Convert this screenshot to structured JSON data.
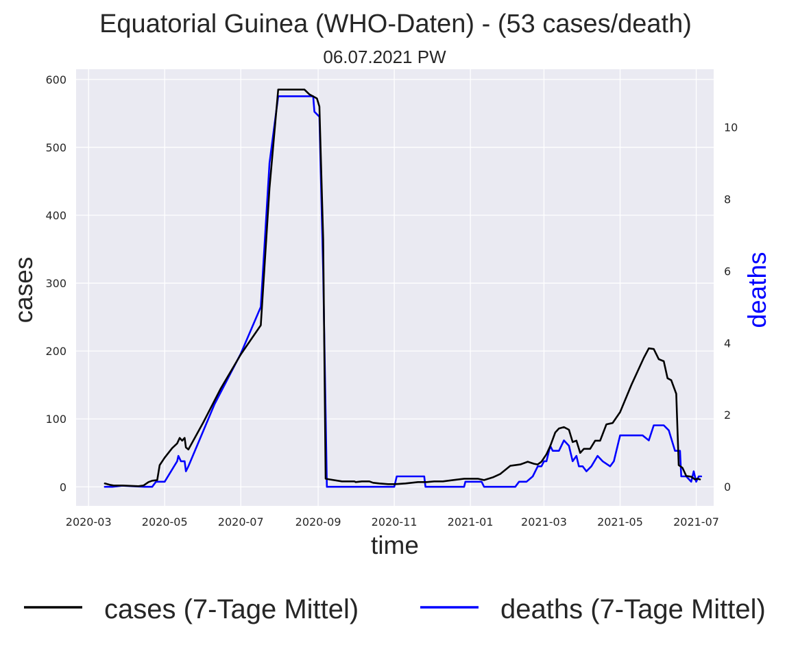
{
  "chart_data": {
    "type": "line",
    "title": "Equatorial Guinea (WHO-Daten) - (53 cases/death)",
    "subtitle": "06.07.2021 PW",
    "xlabel": "time",
    "ylabel": "cases",
    "y2label": "deaths",
    "x_ticks": [
      "2020-03",
      "2020-05",
      "2020-07",
      "2020-09",
      "2020-11",
      "2021-01",
      "2021-03",
      "2021-05",
      "2021-07"
    ],
    "y_ticks": [
      "0",
      "100",
      "200",
      "300",
      "400",
      "500",
      "600"
    ],
    "y2_ticks": [
      "0",
      "2",
      "4",
      "6",
      "8",
      "10"
    ],
    "xlim": [
      "2020-02-20",
      "2021-07-15"
    ],
    "ylim": [
      -28,
      615
    ],
    "y2lim": [
      -0.53,
      11.61
    ],
    "grid": true,
    "legend_position": "bottom-center",
    "colors": {
      "cases": "#000000",
      "deaths": "#0000ff",
      "plot_bg": "#eaeaf2",
      "grid": "#ffffff"
    },
    "series": [
      {
        "name": "cases (7-Tage Mittel)",
        "axis": "left",
        "points": [
          [
            "2020-03-14",
            5
          ],
          [
            "2020-03-18",
            3
          ],
          [
            "2020-03-21",
            2
          ],
          [
            "2020-03-28",
            2
          ],
          [
            "2020-04-10",
            1
          ],
          [
            "2020-04-14",
            2
          ],
          [
            "2020-04-18",
            7
          ],
          [
            "2020-04-21",
            9
          ],
          [
            "2020-04-25",
            10
          ],
          [
            "2020-04-27",
            32
          ],
          [
            "2020-05-01",
            43
          ],
          [
            "2020-05-07",
            57
          ],
          [
            "2020-05-11",
            64
          ],
          [
            "2020-05-13",
            72
          ],
          [
            "2020-05-15",
            68
          ],
          [
            "2020-05-17",
            72
          ],
          [
            "2020-05-18",
            58
          ],
          [
            "2020-05-20",
            55
          ],
          [
            "2020-06-01",
            95
          ],
          [
            "2020-06-15",
            145
          ],
          [
            "2020-07-01",
            195
          ],
          [
            "2020-07-17",
            238
          ],
          [
            "2020-07-24",
            440
          ],
          [
            "2020-07-31",
            585
          ],
          [
            "2020-08-21",
            585
          ],
          [
            "2020-08-25",
            578
          ],
          [
            "2020-08-31",
            572
          ],
          [
            "2020-09-02",
            560
          ],
          [
            "2020-09-05",
            365
          ],
          [
            "2020-09-07",
            12
          ],
          [
            "2020-09-10",
            11
          ],
          [
            "2020-09-20",
            8
          ],
          [
            "2020-09-30",
            8
          ],
          [
            "2020-10-01",
            7
          ],
          [
            "2020-10-06",
            8
          ],
          [
            "2020-10-12",
            8
          ],
          [
            "2020-10-15",
            6
          ],
          [
            "2020-10-20",
            5
          ],
          [
            "2020-10-27",
            4
          ],
          [
            "2020-11-02",
            4
          ],
          [
            "2020-11-10",
            5
          ],
          [
            "2020-11-20",
            7
          ],
          [
            "2020-11-27",
            7
          ],
          [
            "2020-12-03",
            8
          ],
          [
            "2020-12-10",
            8
          ],
          [
            "2020-12-18",
            10
          ],
          [
            "2020-12-27",
            12
          ],
          [
            "2021-01-01",
            12
          ],
          [
            "2021-01-07",
            12
          ],
          [
            "2021-01-12",
            10
          ],
          [
            "2021-01-19",
            14
          ],
          [
            "2021-01-25",
            19
          ],
          [
            "2021-02-02",
            31
          ],
          [
            "2021-02-10",
            33
          ],
          [
            "2021-02-16",
            37
          ],
          [
            "2021-02-21",
            34
          ],
          [
            "2021-02-24",
            33
          ],
          [
            "2021-02-27",
            37
          ],
          [
            "2021-03-03",
            48
          ],
          [
            "2021-03-06",
            60
          ],
          [
            "2021-03-10",
            80
          ],
          [
            "2021-03-13",
            86
          ],
          [
            "2021-03-17",
            88
          ],
          [
            "2021-03-21",
            84
          ],
          [
            "2021-03-24",
            66
          ],
          [
            "2021-03-27",
            68
          ],
          [
            "2021-03-30",
            50
          ],
          [
            "2021-04-02",
            56
          ],
          [
            "2021-04-07",
            56
          ],
          [
            "2021-04-11",
            68
          ],
          [
            "2021-04-15",
            68
          ],
          [
            "2021-04-20",
            92
          ],
          [
            "2021-04-25",
            94
          ],
          [
            "2021-05-01",
            110
          ],
          [
            "2021-05-10",
            150
          ],
          [
            "2021-05-20",
            190
          ],
          [
            "2021-05-24",
            204
          ],
          [
            "2021-05-28",
            203
          ],
          [
            "2021-06-01",
            188
          ],
          [
            "2021-06-05",
            185
          ],
          [
            "2021-06-08",
            160
          ],
          [
            "2021-06-11",
            157
          ],
          [
            "2021-06-15",
            137
          ],
          [
            "2021-06-17",
            32
          ],
          [
            "2021-06-20",
            28
          ],
          [
            "2021-06-23",
            16
          ],
          [
            "2021-06-27",
            15
          ],
          [
            "2021-06-30",
            11
          ],
          [
            "2021-07-02",
            12
          ],
          [
            "2021-07-04",
            11
          ]
        ]
      },
      {
        "name": "deaths (7-Tage Mittel)",
        "axis": "right",
        "points": [
          [
            "2020-03-14",
            0
          ],
          [
            "2020-03-20",
            0
          ],
          [
            "2020-03-28",
            0.03
          ],
          [
            "2020-04-15",
            0
          ],
          [
            "2020-04-21",
            0
          ],
          [
            "2020-04-24",
            0.14
          ],
          [
            "2020-05-01",
            0.14
          ],
          [
            "2020-05-11",
            0.71
          ],
          [
            "2020-05-12",
            0.86
          ],
          [
            "2020-05-14",
            0.71
          ],
          [
            "2020-05-17",
            0.71
          ],
          [
            "2020-05-18",
            0.43
          ],
          [
            "2020-05-20",
            0.57
          ],
          [
            "2020-06-10",
            2.3
          ],
          [
            "2020-07-01",
            3.7
          ],
          [
            "2020-07-17",
            5.0
          ],
          [
            "2020-07-24",
            9.0
          ],
          [
            "2020-07-31",
            10.86
          ],
          [
            "2020-08-28",
            10.86
          ],
          [
            "2020-08-29",
            10.43
          ],
          [
            "2020-09-02",
            10.29
          ],
          [
            "2020-09-05",
            6.0
          ],
          [
            "2020-09-08",
            0
          ],
          [
            "2020-11-01",
            0
          ],
          [
            "2020-11-03",
            0.29
          ],
          [
            "2020-11-25",
            0.29
          ],
          [
            "2020-11-26",
            0
          ],
          [
            "2020-12-27",
            0
          ],
          [
            "2020-12-28",
            0.14
          ],
          [
            "2021-01-10",
            0.14
          ],
          [
            "2021-01-12",
            0
          ],
          [
            "2021-02-06",
            0
          ],
          [
            "2021-02-09",
            0.14
          ],
          [
            "2021-02-15",
            0.14
          ],
          [
            "2021-02-20",
            0.29
          ],
          [
            "2021-02-24",
            0.57
          ],
          [
            "2021-02-27",
            0.57
          ],
          [
            "2021-03-01",
            0.71
          ],
          [
            "2021-03-03",
            0.71
          ],
          [
            "2021-03-06",
            1.14
          ],
          [
            "2021-03-08",
            1.0
          ],
          [
            "2021-03-13",
            1.0
          ],
          [
            "2021-03-17",
            1.29
          ],
          [
            "2021-03-21",
            1.14
          ],
          [
            "2021-03-24",
            0.71
          ],
          [
            "2021-03-27",
            0.86
          ],
          [
            "2021-03-29",
            0.57
          ],
          [
            "2021-04-01",
            0.57
          ],
          [
            "2021-04-04",
            0.43
          ],
          [
            "2021-04-08",
            0.57
          ],
          [
            "2021-04-13",
            0.86
          ],
          [
            "2021-04-17",
            0.71
          ],
          [
            "2021-04-23",
            0.57
          ],
          [
            "2021-04-26",
            0.71
          ],
          [
            "2021-05-01",
            1.43
          ],
          [
            "2021-05-19",
            1.43
          ],
          [
            "2021-05-24",
            1.29
          ],
          [
            "2021-05-28",
            1.71
          ],
          [
            "2021-06-05",
            1.71
          ],
          [
            "2021-06-09",
            1.57
          ],
          [
            "2021-06-14",
            1.0
          ],
          [
            "2021-06-18",
            1.0
          ],
          [
            "2021-06-19",
            0.29
          ],
          [
            "2021-06-23",
            0.29
          ],
          [
            "2021-06-27",
            0.14
          ],
          [
            "2021-06-29",
            0.43
          ],
          [
            "2021-07-01",
            0.14
          ],
          [
            "2021-07-03",
            0.29
          ],
          [
            "2021-07-05",
            0.29
          ]
        ]
      }
    ]
  }
}
